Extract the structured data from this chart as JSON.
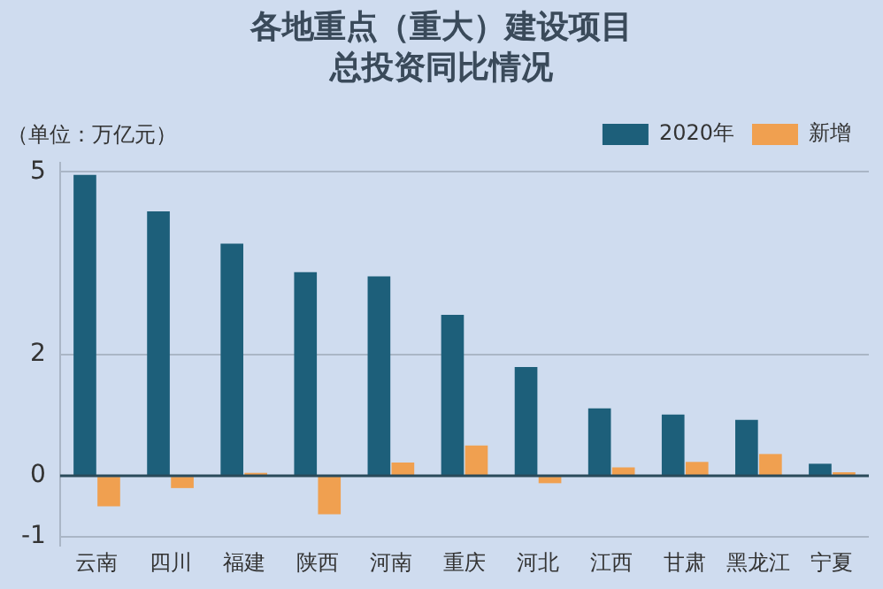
{
  "chart_data": {
    "type": "bar",
    "title": "各地重点（重大）建设项目总投资同比情况",
    "ylabel": "（单位：万亿元）",
    "categories": [
      "云南",
      "四川",
      "福建",
      "陕西",
      "河南",
      "重庆",
      "河北",
      "江西",
      "甘肃",
      "黑龙江",
      "宁夏"
    ],
    "series": [
      {
        "name": "2020年",
        "color": "#1d5f7a",
        "values": [
          4.95,
          4.35,
          3.82,
          3.35,
          3.28,
          2.65,
          1.79,
          1.11,
          1.01,
          0.92,
          0.2
        ]
      },
      {
        "name": "新增",
        "color": "#f0a050",
        "values": [
          -0.5,
          -0.2,
          0.05,
          -0.63,
          0.22,
          0.5,
          -0.12,
          0.14,
          0.23,
          0.36,
          0.06
        ]
      }
    ],
    "ylim": [
      -1.15,
      5.15
    ],
    "yticks": [
      -1,
      0,
      2,
      5
    ],
    "grid": "y",
    "ref_lines": [
      {
        "axis": "y",
        "value": 0,
        "color": "#2a4a5a"
      }
    ],
    "legend": "top right"
  }
}
